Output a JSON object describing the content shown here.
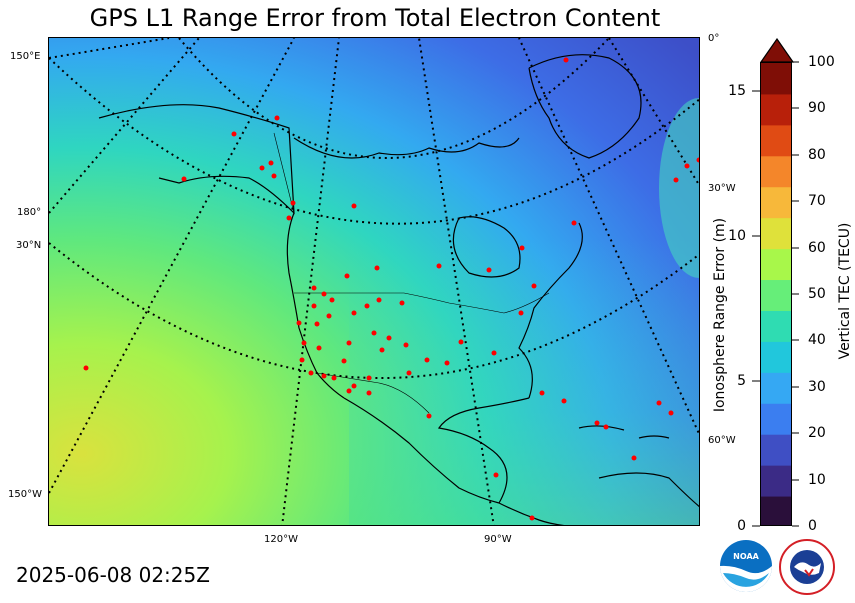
{
  "title": "GPS L1 Range Error from Total Electron Content",
  "timestamp": "2025-06-08 02:25Z",
  "map": {
    "left_labels": [
      "150°E",
      "180°",
      "30°N",
      "150°W"
    ],
    "right_labels": [
      "0°",
      "30°W",
      "60°W"
    ],
    "bottom_labels": [
      "120°W",
      "90°W"
    ],
    "station_color": "#ff0000"
  },
  "colorbar": {
    "title": "Vertical TEC (TECU)",
    "ticks": [
      "0",
      "10",
      "20",
      "30",
      "40",
      "50",
      "60",
      "70",
      "80",
      "90",
      "100"
    ],
    "colors": [
      "#2a0f3a",
      "#3b2b86",
      "#3f4fc4",
      "#3b7ef0",
      "#35a8f3",
      "#21c7dc",
      "#2fdcb2",
      "#66ee79",
      "#a8f74a",
      "#dfe13a",
      "#f7b83a",
      "#f4862a",
      "#e04b14",
      "#b8200a",
      "#7f0e06"
    ]
  },
  "range_axis": {
    "title": "Ionosphere Range Error (m)",
    "ticks": [
      "0",
      "5",
      "10",
      "15"
    ]
  },
  "logos": {
    "noaa": "NOAA",
    "nws": "NATIONAL WEATHER SERVICE"
  }
}
